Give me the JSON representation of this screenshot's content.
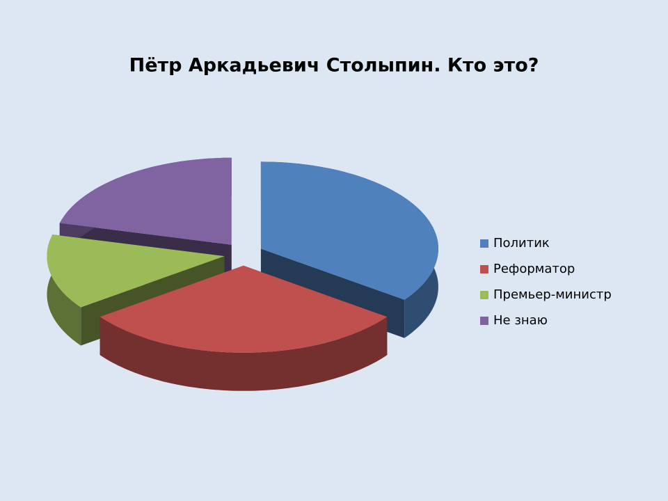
{
  "chart_data": {
    "type": "pie",
    "title": "Пётр Аркадьевич Столыпин. Кто это?",
    "categories": [
      "Политик",
      "Реформатор",
      "Премьер-министр",
      "Не знаю"
    ],
    "values": [
      35,
      30,
      14,
      21
    ],
    "colors": [
      "#4f81bd",
      "#c0504d",
      "#9bbb59",
      "#8064a2"
    ],
    "legend": "right"
  }
}
